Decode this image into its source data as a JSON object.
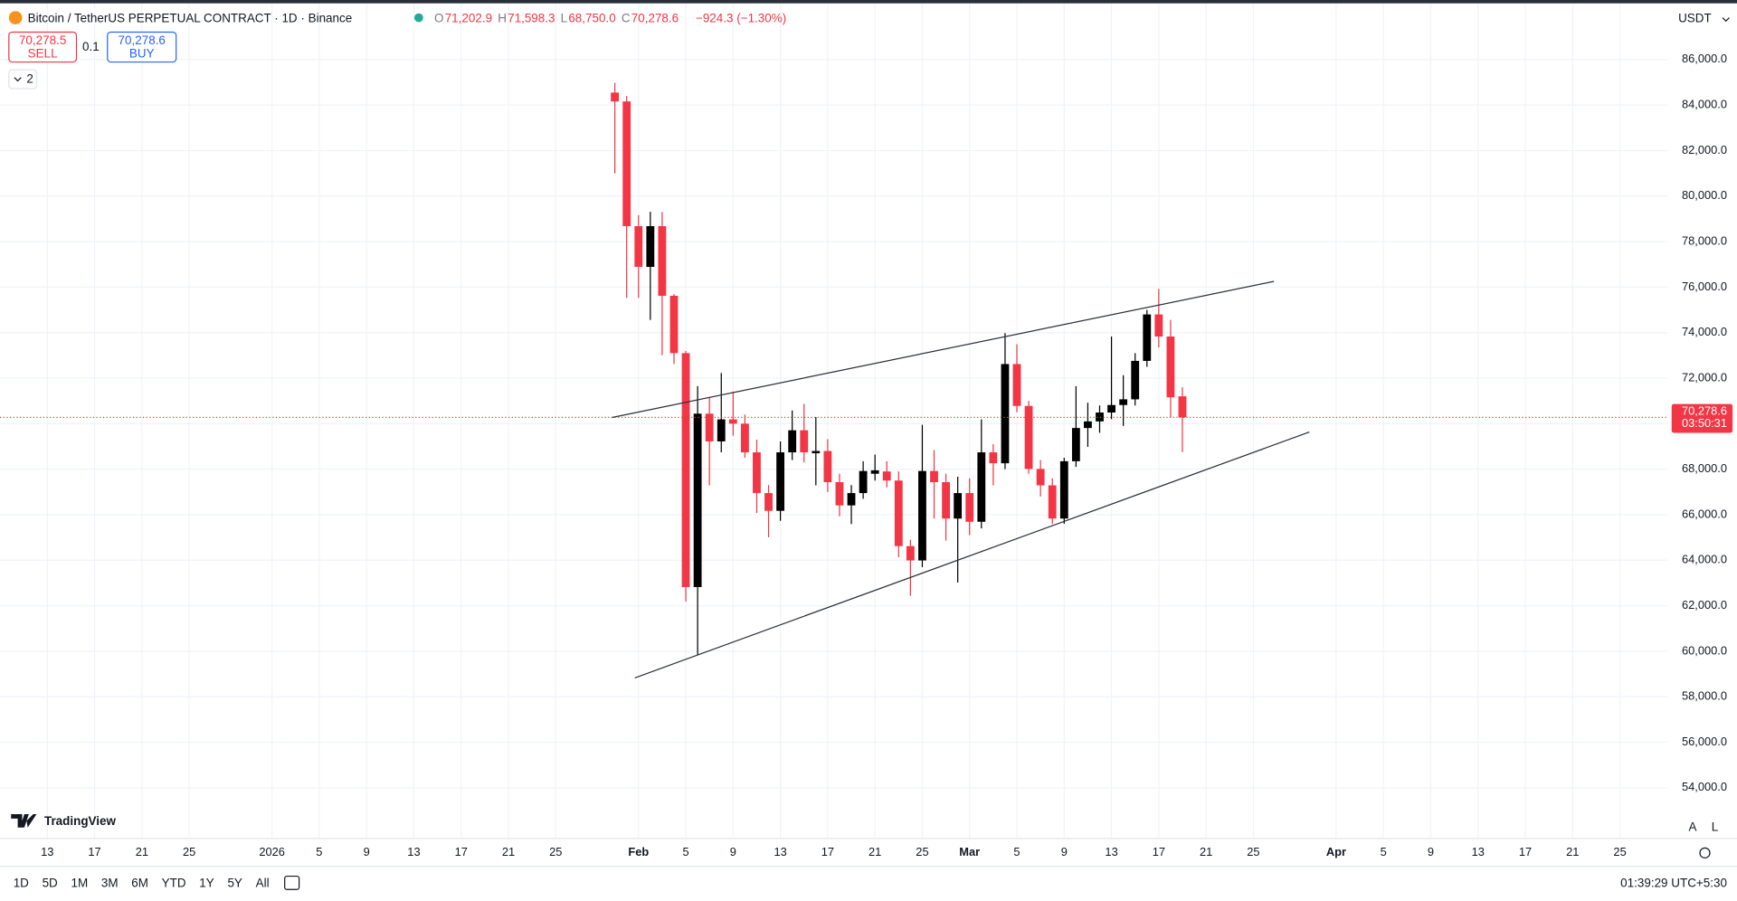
{
  "ui": {
    "symbol": "Bitcoin / TetherUS PERPETUAL CONTRACT · 1D · Binance",
    "ohlc": [
      {
        "key": "O",
        "value": "71,202.9"
      },
      {
        "key": "H",
        "value": "71,598.3"
      },
      {
        "key": "L",
        "value": "68,750.0"
      },
      {
        "key": "C",
        "value": "70,278.6"
      }
    ],
    "change": "−924.3 (−1.30%)",
    "sell": {
      "price": "70,278.5",
      "label": "SELL"
    },
    "buy": {
      "price": "70,278.6",
      "label": "BUY"
    },
    "qty": "0.1",
    "layers": "2",
    "currency": "USDT",
    "countdown": "03:50:31",
    "brand": "TradingView",
    "ranges": [
      "1D",
      "5D",
      "1M",
      "3M",
      "6M",
      "YTD",
      "1Y",
      "5Y",
      "All"
    ],
    "clock": "01:39:29 UTC+5:30",
    "scale_buttons": [
      "A",
      "L"
    ]
  },
  "chart_data": {
    "type": "candlestick",
    "up_color": "#000000",
    "down_color": "#f23645",
    "grid": true,
    "x": [
      "2026-01-30",
      "2026-01-31",
      "2026-02-01",
      "2026-02-02",
      "2026-02-03",
      "2026-02-04",
      "2026-02-05",
      "2026-02-06",
      "2026-02-07",
      "2026-02-08",
      "2026-02-09",
      "2026-02-10",
      "2026-02-11",
      "2026-02-12",
      "2026-02-13",
      "2026-02-14",
      "2026-02-15",
      "2026-02-16",
      "2026-02-17",
      "2026-02-18",
      "2026-02-19",
      "2026-02-20",
      "2026-02-21",
      "2026-02-22",
      "2026-02-23",
      "2026-02-24",
      "2026-02-25",
      "2026-02-26",
      "2026-02-27",
      "2026-02-28",
      "2026-03-01",
      "2026-03-02",
      "2026-03-03",
      "2026-03-04",
      "2026-03-05",
      "2026-03-06",
      "2026-03-07",
      "2026-03-08",
      "2026-03-09",
      "2026-03-10",
      "2026-03-11",
      "2026-03-12",
      "2026-03-13",
      "2026-03-14",
      "2026-03-15",
      "2026-03-16",
      "2026-03-17",
      "2026-03-18",
      "2026-03-19"
    ],
    "open": [
      84550,
      84160,
      78680,
      76890,
      78680,
      75620,
      73100,
      62820,
      70440,
      69220,
      70190,
      70000,
      68740,
      66950,
      66170,
      68740,
      69710,
      68700,
      68800,
      67430,
      66410,
      66950,
      67800,
      67900,
      67500,
      64620,
      63990,
      67920,
      67430,
      65830,
      66950,
      65690,
      68740,
      68260,
      72620,
      70780,
      68010,
      67290,
      65830,
      68350,
      69810,
      70100,
      70490,
      70820,
      71070,
      72760,
      74800,
      73830,
      71202.9
    ],
    "high": [
      84980,
      84400,
      79160,
      79310,
      79300,
      75700,
      73200,
      71650,
      71160,
      72230,
      71410,
      70400,
      69300,
      67300,
      69220,
      70580,
      70870,
      70290,
      69320,
      67800,
      67300,
      68350,
      68640,
      68350,
      67900,
      64900,
      69950,
      68840,
      67800,
      67670,
      67600,
      70190,
      69100,
      73980,
      73490,
      71000,
      68400,
      67600,
      68500,
      71650,
      70920,
      70800,
      73830,
      72130,
      73100,
      75000,
      75920,
      74560,
      71598.3
    ],
    "low": [
      81000,
      75530,
      75530,
      74560,
      73010,
      72620,
      62190,
      59820,
      67290,
      68740,
      69470,
      68500,
      66070,
      65010,
      65730,
      68400,
      68300,
      67290,
      67000,
      65930,
      65590,
      66700,
      67500,
      67200,
      64130,
      62440,
      63700,
      65830,
      64860,
      63020,
      65100,
      65400,
      67290,
      68000,
      70500,
      67800,
      66800,
      65590,
      65600,
      68100,
      68980,
      69600,
      70200,
      69900,
      70800,
      72500,
      73350,
      70290,
      68750.0
    ],
    "close": [
      84160,
      78680,
      76890,
      78680,
      75620,
      73100,
      62820,
      70440,
      69220,
      70190,
      70000,
      68740,
      66950,
      66170,
      68740,
      69710,
      68740,
      68800,
      67430,
      66410,
      66950,
      67920,
      67950,
      67500,
      64620,
      63990,
      67920,
      67430,
      65830,
      66950,
      65690,
      68740,
      68260,
      72620,
      70780,
      68010,
      67290,
      65830,
      68350,
      69810,
      70100,
      70490,
      70820,
      71070,
      72760,
      74800,
      73830,
      71160,
      70278.6
    ],
    "last_price": {
      "value": 70278.6,
      "label": "70,278.6"
    },
    "ylim": [
      51770,
      88618
    ],
    "yticks": [
      {
        "value": 54000,
        "label": "54,000.0"
      },
      {
        "value": 56000,
        "label": "56,000.0"
      },
      {
        "value": 58000,
        "label": "58,000.0"
      },
      {
        "value": 60000,
        "label": "60,000.0"
      },
      {
        "value": 62000,
        "label": "62,000.0"
      },
      {
        "value": 64000,
        "label": "64,000.0"
      },
      {
        "value": 66000,
        "label": "66,000.0"
      },
      {
        "value": 68000,
        "label": "68,000.0"
      },
      {
        "value": 70000,
        "label": "70,000.0"
      },
      {
        "value": 72000,
        "label": "72,000.0"
      },
      {
        "value": 74000,
        "label": "74,000.0"
      },
      {
        "value": 76000,
        "label": "76,000.0"
      },
      {
        "value": 78000,
        "label": "78,000.0"
      },
      {
        "value": 80000,
        "label": "80,000.0"
      },
      {
        "value": 82000,
        "label": "82,000.0"
      },
      {
        "value": 84000,
        "label": "84,000.0"
      },
      {
        "value": 86000,
        "label": "86,000.0"
      }
    ],
    "xlim": [
      "2025-12-09",
      "2026-04-29"
    ],
    "xticks": [
      {
        "value": "2025-12-13",
        "label": "13"
      },
      {
        "value": "2025-12-17",
        "label": "17"
      },
      {
        "value": "2025-12-21",
        "label": "21"
      },
      {
        "value": "2025-12-25",
        "label": "25"
      },
      {
        "value": "2026-01-01",
        "label": "2026"
      },
      {
        "value": "2026-01-05",
        "label": "5"
      },
      {
        "value": "2026-01-09",
        "label": "9"
      },
      {
        "value": "2026-01-13",
        "label": "13"
      },
      {
        "value": "2026-01-17",
        "label": "17"
      },
      {
        "value": "2026-01-21",
        "label": "21"
      },
      {
        "value": "2026-01-25",
        "label": "25"
      },
      {
        "value": "2026-02-01",
        "label": "Feb"
      },
      {
        "value": "2026-02-05",
        "label": "5"
      },
      {
        "value": "2026-02-09",
        "label": "9"
      },
      {
        "value": "2026-02-13",
        "label": "13"
      },
      {
        "value": "2026-02-17",
        "label": "17"
      },
      {
        "value": "2026-02-21",
        "label": "21"
      },
      {
        "value": "2026-02-25",
        "label": "25"
      },
      {
        "value": "2026-03-01",
        "label": "Mar"
      },
      {
        "value": "2026-03-05",
        "label": "5"
      },
      {
        "value": "2026-03-09",
        "label": "9"
      },
      {
        "value": "2026-03-13",
        "label": "13"
      },
      {
        "value": "2026-03-17",
        "label": "17"
      },
      {
        "value": "2026-03-21",
        "label": "21"
      },
      {
        "value": "2026-03-25",
        "label": "25"
      },
      {
        "value": "2026-04-01",
        "label": "Apr"
      },
      {
        "value": "2026-04-05",
        "label": "5"
      },
      {
        "value": "2026-04-09",
        "label": "9"
      },
      {
        "value": "2026-04-13",
        "label": "13"
      },
      {
        "value": "2026-04-17",
        "label": "17"
      },
      {
        "value": "2026-04-21",
        "label": "21"
      },
      {
        "value": "2026-04-25",
        "label": "25"
      }
    ]
  }
}
